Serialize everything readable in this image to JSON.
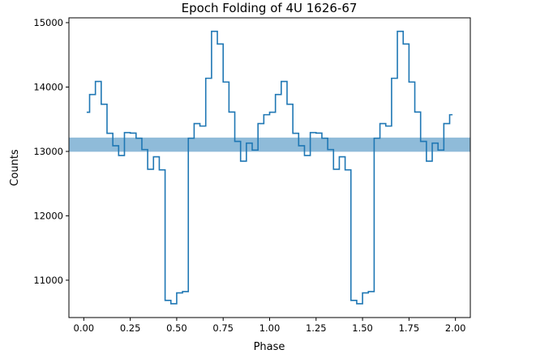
{
  "chart_data": {
    "type": "line",
    "drawstyle": "steps-mid",
    "title": "Epoch Folding of 4U 1626-67",
    "xlabel": "Phase",
    "ylabel": "Counts",
    "xlim": [
      -0.08,
      2.08
    ],
    "ylim": [
      10420,
      15075
    ],
    "xticks": [
      0.0,
      0.25,
      0.5,
      0.75,
      1.0,
      1.25,
      1.5,
      1.75,
      2.0
    ],
    "xtick_labels": [
      "0.00",
      "0.25",
      "0.50",
      "0.75",
      "1.00",
      "1.25",
      "1.50",
      "1.75",
      "2.00"
    ],
    "yticks": [
      11000,
      12000,
      13000,
      14000,
      15000
    ],
    "ytick_labels": [
      "11000",
      "12000",
      "13000",
      "14000",
      "15000"
    ],
    "grid": false,
    "bins_per_cycle": 32,
    "cycles": 2,
    "profile": [
      13608,
      13884,
      14086,
      13733,
      13281,
      13088,
      12937,
      13293,
      13285,
      13205,
      13029,
      12723,
      12916,
      12714,
      10686,
      10635,
      10803,
      10824,
      13205,
      13432,
      13394,
      14136,
      14865,
      14669,
      14078,
      13612,
      13155,
      12849,
      13129,
      13021,
      13432,
      13570
    ],
    "band": {
      "lower": 12995,
      "upper": 13215
    },
    "line_color": "#1f77b4",
    "band_color": "#1f77b4"
  }
}
